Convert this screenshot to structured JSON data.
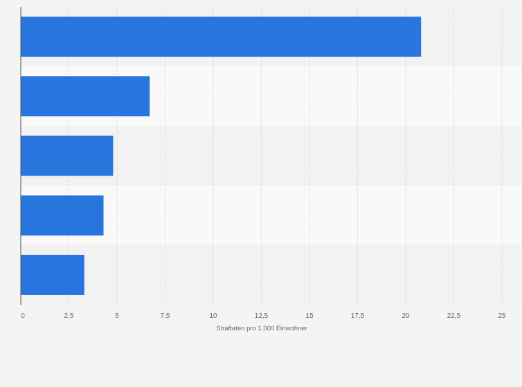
{
  "chart_data": {
    "type": "bar",
    "orientation": "horizontal",
    "categories": [
      "",
      "",
      "",
      "",
      ""
    ],
    "values": [
      20.8,
      6.7,
      4.8,
      4.3,
      3.3
    ],
    "xlabel": "Straftaten pro 1.000 Einwohner",
    "ylabel": "",
    "xlim": [
      0,
      25
    ],
    "x_ticks": [
      0,
      2.5,
      5,
      7.5,
      10,
      12.5,
      15,
      17.5,
      20,
      22.5,
      25
    ],
    "x_tick_labels": [
      "0",
      "2,5",
      "5",
      "7,5",
      "10",
      "12,5",
      "15",
      "17,5",
      "20",
      "22,5",
      "25"
    ],
    "grid": true,
    "legend": "none",
    "bar_color": "#2876dd",
    "band_colors": [
      "#f2f2f2",
      "#f9f9f9"
    ]
  }
}
